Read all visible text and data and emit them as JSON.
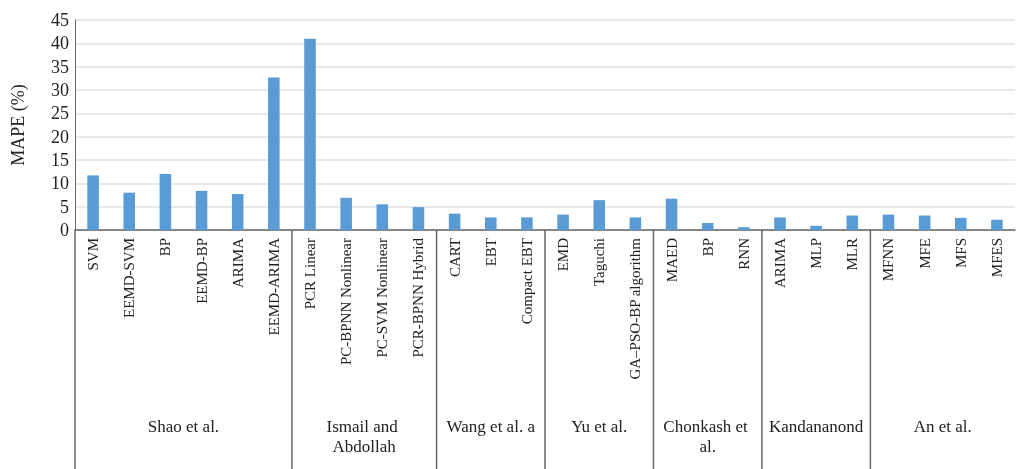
{
  "chart_data": {
    "type": "bar",
    "ylabel": "MAPE (%)",
    "categories": [
      "SVM",
      "EEMD-SVM",
      "BP",
      "EEMD-BP",
      "ARIMA",
      "EEMD-ARIMA",
      "PCR Linear",
      "PC-BPNN Nonlinear",
      "PC-SVM Nonlinear",
      "PCR-BPNN Hybrid",
      "CART",
      "EBT",
      "Compact EBT",
      "EMD",
      "Taguchi",
      "GA–PSO-BP algorithm",
      "MAED",
      "BP",
      "RNN",
      "ARIMA",
      "MLP",
      "MLR",
      "MFNN",
      "MFE",
      "MFS",
      "MFES"
    ],
    "values": [
      11.7,
      8.0,
      12.0,
      8.4,
      7.7,
      32.7,
      41.0,
      6.9,
      5.5,
      4.9,
      3.5,
      2.7,
      2.7,
      3.3,
      6.4,
      2.7,
      6.7,
      1.5,
      0.6,
      2.7,
      0.9,
      3.1,
      3.3,
      3.1,
      2.6,
      2.2
    ],
    "color": "#5b9bd5",
    "ylim": [
      0,
      45
    ],
    "yticks": [
      0,
      5,
      10,
      15,
      20,
      25,
      30,
      35,
      40,
      45
    ],
    "grid": "y",
    "annotations": [
      "Shao et al.",
      "Ismail and Abdollah",
      "Wang et al. a",
      "Yu et al.",
      "Chonkash et al.",
      "Kandananond",
      "An et al."
    ]
  }
}
